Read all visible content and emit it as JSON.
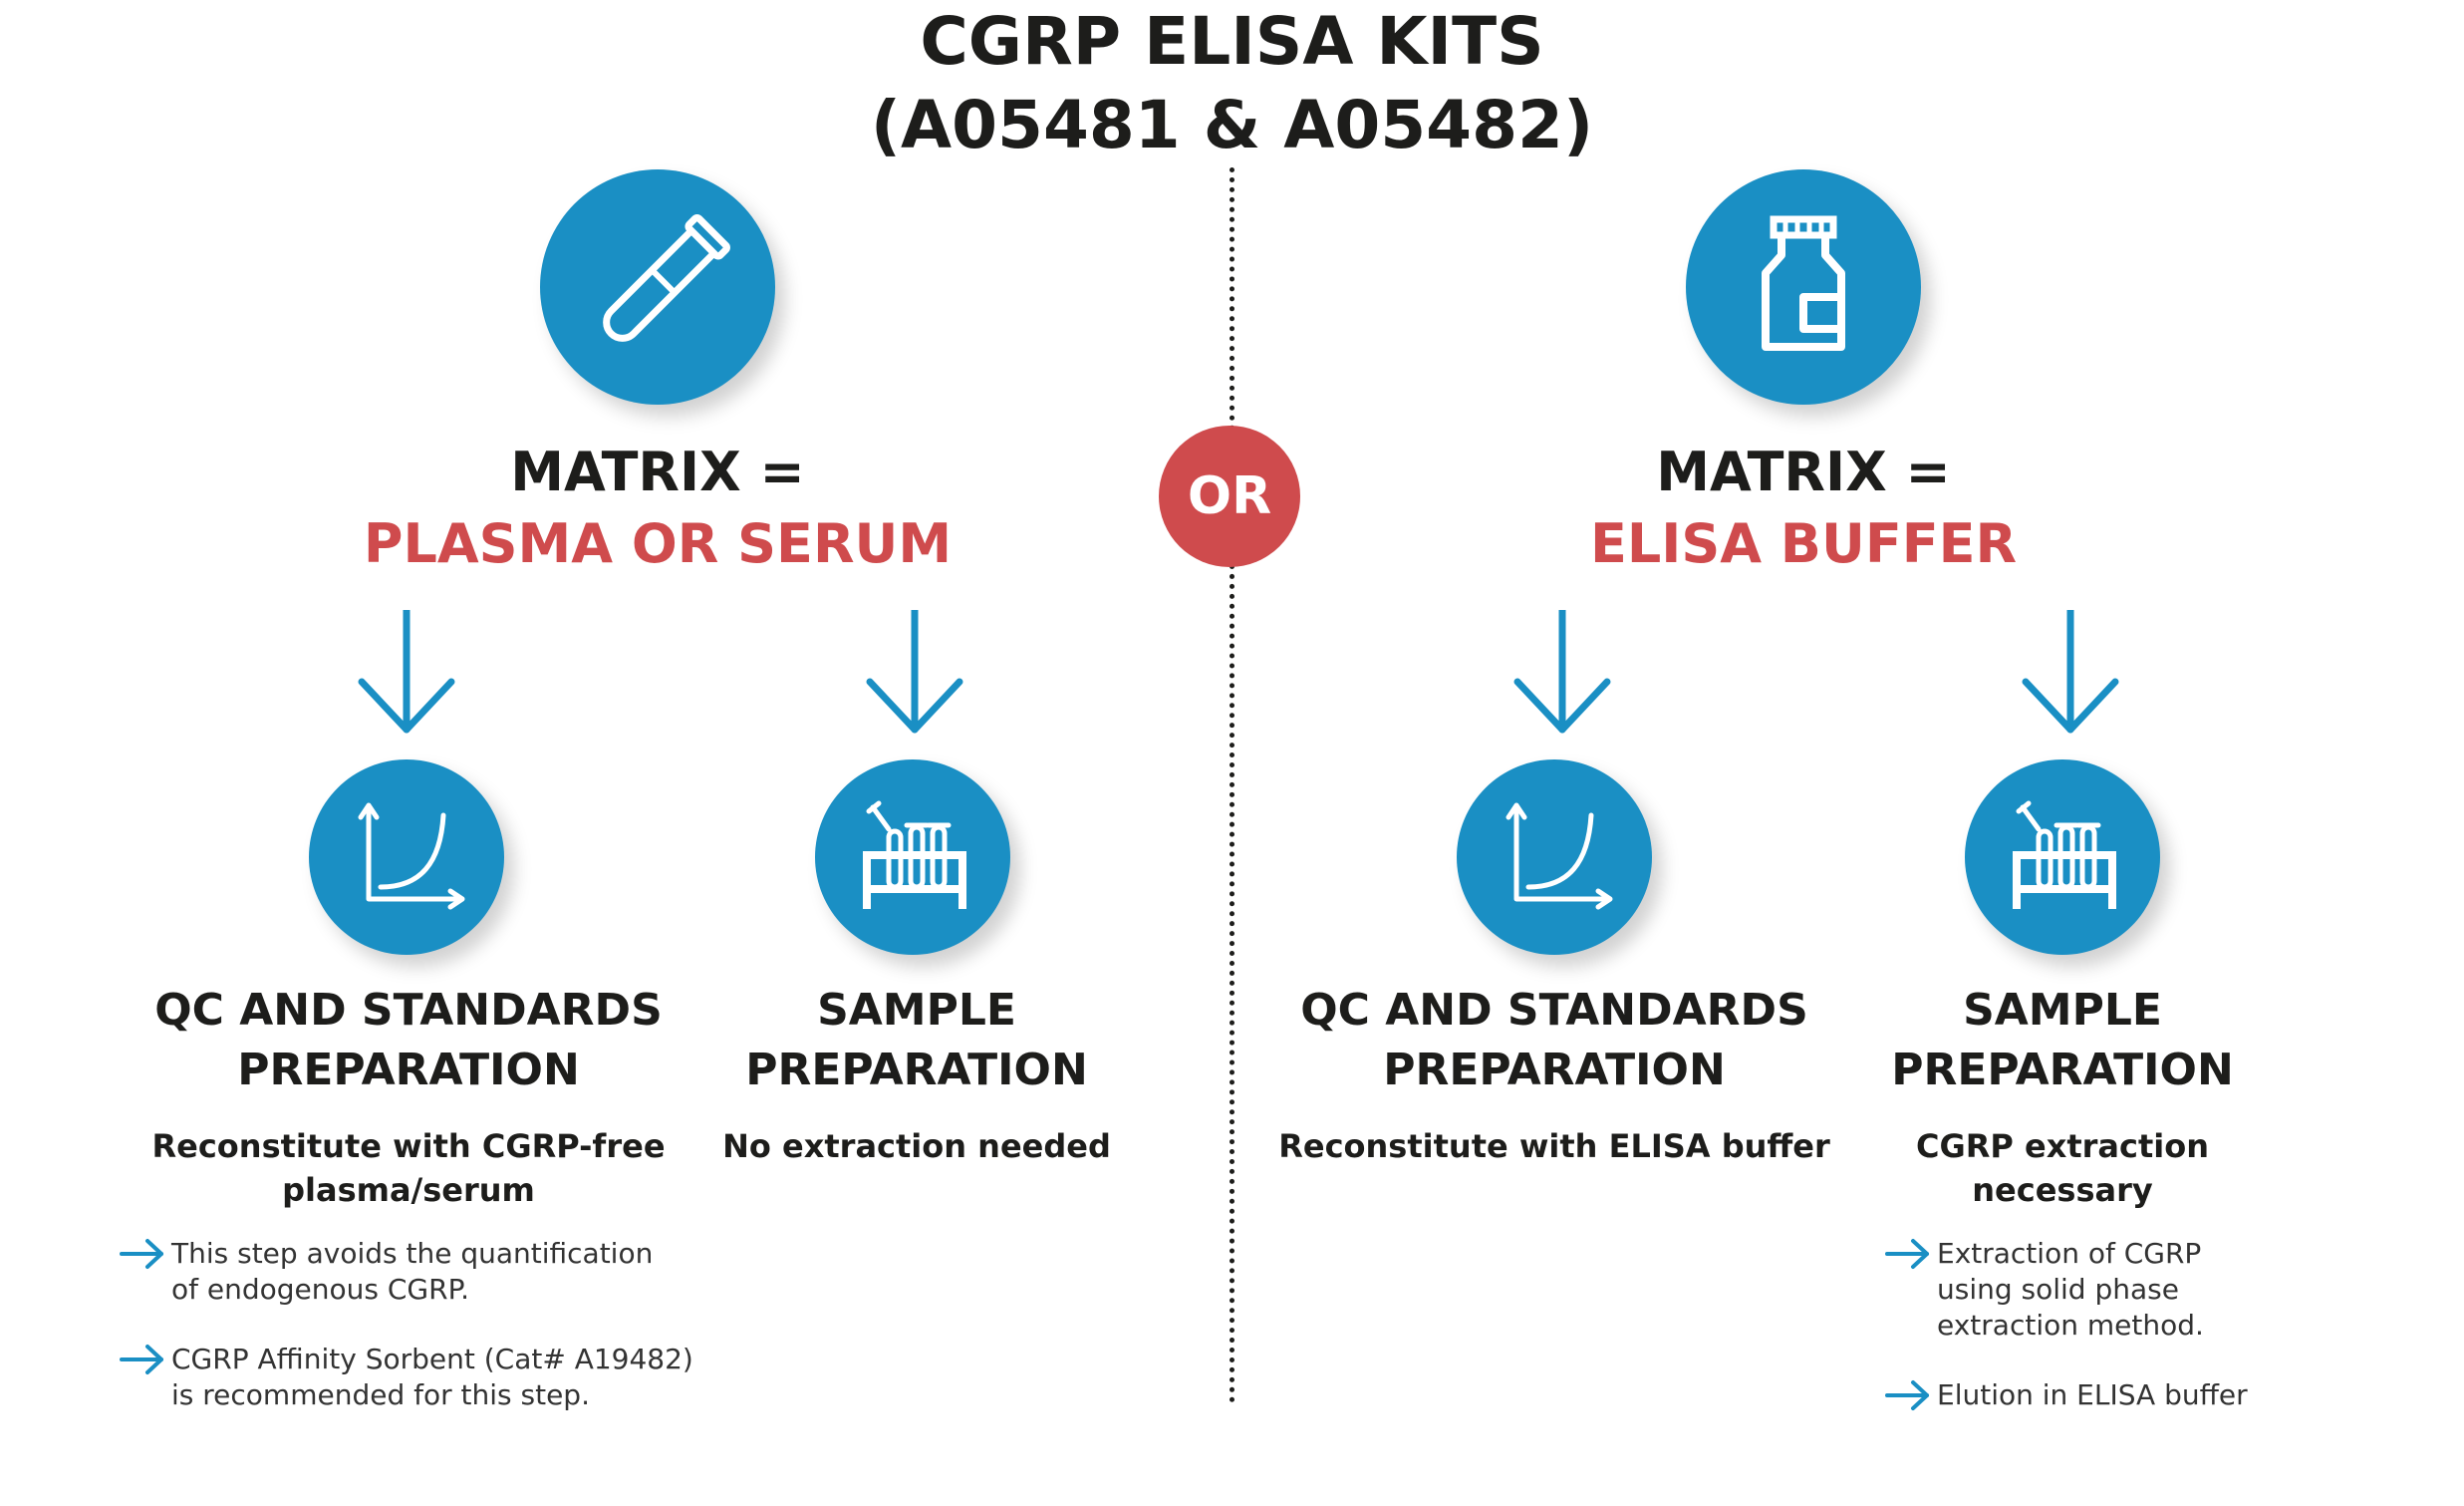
{
  "title": {
    "line1": "CGRP ELISA KITS",
    "line2": "(A05481 & A05482)"
  },
  "or_label": "OR",
  "colors": {
    "blue": "#1a8fc4",
    "red": "#cf4b4d",
    "dark": "#1d1d1b"
  },
  "left": {
    "icon": "test-tube-icon",
    "matrix_label": "MATRIX =",
    "matrix_value": "PLASMA OR SERUM",
    "qc": {
      "icon": "curve-chart-icon",
      "title_line1": "QC AND STANDARDS",
      "title_line2": "PREPARATION",
      "sub_line1": "Reconstitute with CGRP-free",
      "sub_line2": "plasma/serum",
      "notes": [
        {
          "line1": "This step avoids the quantification",
          "line2": "of endogenous CGRP."
        },
        {
          "line1": "CGRP Affinity Sorbent (Cat# A19482)",
          "line2": "is recommended for this step."
        }
      ]
    },
    "sample": {
      "icon": "tube-rack-icon",
      "title_line1": "SAMPLE",
      "title_line2": "PREPARATION",
      "sub_line1": "No extraction needed"
    }
  },
  "right": {
    "icon": "bottle-icon",
    "matrix_label": "MATRIX =",
    "matrix_value": "ELISA BUFFER",
    "qc": {
      "icon": "curve-chart-icon",
      "title_line1": "QC AND STANDARDS",
      "title_line2": "PREPARATION",
      "sub_line1": "Reconstitute with ELISA buffer"
    },
    "sample": {
      "icon": "tube-rack-icon",
      "title_line1": "SAMPLE",
      "title_line2": "PREPARATION",
      "sub_line1": "CGRP extraction",
      "sub_line2": "necessary",
      "notes": [
        {
          "line1": "Extraction of CGRP",
          "line2": "using solid phase",
          "line3": "extraction method."
        },
        {
          "line1": "Elution in ELISA buffer"
        }
      ]
    }
  }
}
